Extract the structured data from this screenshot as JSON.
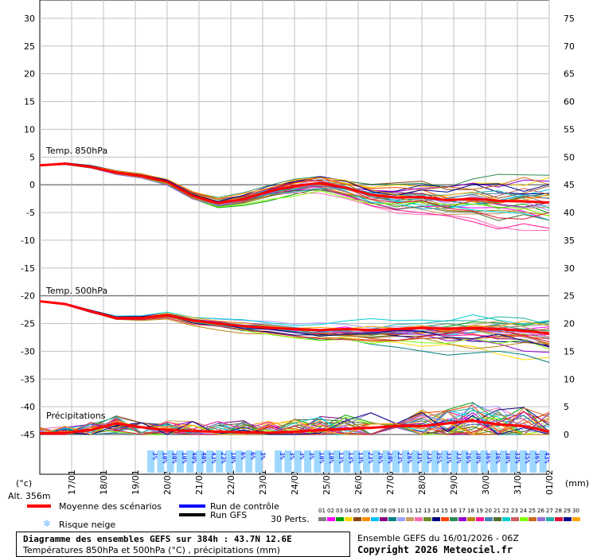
{
  "chart_data": {
    "type": "line",
    "title": "Diagramme des ensembles GEFS sur 384h : 43.7N 12.6E",
    "subtitle": "Températures 850hPa et 500hPa (°C) , précipitations (mm)",
    "run": "Ensemble GEFS du 16/01/2026 - 06Z",
    "copyright": "Copyright 2026 Meteociel.fr",
    "altitude": "Alt. 356m",
    "left_unit": "(°c)",
    "right_unit": "(mm)",
    "x_dates": [
      "17/01",
      "18/01",
      "19/01",
      "20/01",
      "21/01",
      "22/01",
      "23/01",
      "24/01",
      "25/01",
      "26/01",
      "27/01",
      "28/01",
      "29/01",
      "30/01",
      "31/01",
      "01/02"
    ],
    "left_ticks": [
      30,
      25,
      20,
      15,
      10,
      5,
      0,
      -5,
      -10,
      -15,
      -20,
      -25,
      -30,
      -35,
      -40,
      -45
    ],
    "right_ticks": [
      75,
      70,
      65,
      60,
      55,
      50,
      45,
      40,
      35,
      30,
      25,
      20,
      15,
      10,
      5,
      0
    ],
    "panel_labels": {
      "t850": "Temp. 850hPa",
      "t500": "Temp. 500hPa",
      "precip": "Précipitations"
    },
    "legend": {
      "mean": "Moyenne des scénarios",
      "control": "Run de contrôle",
      "gfs": "Run GFS",
      "snow": "Risque neige",
      "perts": "30 Perts."
    },
    "t850_mean": [
      3.5,
      3.8,
      3.2,
      2.2,
      1.6,
      0.5,
      -2.0,
      -3.3,
      -2.6,
      -1.2,
      -0.2,
      0.3,
      -0.5,
      -1.8,
      -2.3,
      -2.2,
      -2.8,
      -2.5,
      -2.9,
      -3.0,
      -3.2
    ],
    "t500_mean": [
      -21.0,
      -21.5,
      -22.8,
      -24.0,
      -24.0,
      -23.5,
      -24.5,
      -25.0,
      -25.5,
      -25.8,
      -26.0,
      -26.2,
      -26.0,
      -26.2,
      -26.0,
      -25.8,
      -26.0,
      -25.8,
      -26.0,
      -26.3,
      -26.8
    ],
    "precip_mean": [
      0.2,
      0.3,
      0.8,
      2.0,
      1.3,
      0.8,
      0.6,
      0.5,
      0.4,
      0.3,
      0.5,
      0.8,
      1.0,
      1.2,
      1.5,
      1.5,
      2.0,
      2.5,
      1.8,
      1.5,
      0.5
    ],
    "snow_risk": [
      "3%",
      "10%",
      "30%",
      "10%",
      "40%",
      "40%",
      "43%",
      "23%",
      "10%",
      "6%",
      "6%",
      "3%",
      "",
      "3%",
      "3%",
      "3%",
      "3%",
      "10%",
      "10%",
      "13%",
      "13%",
      "13%",
      "23%",
      "26%",
      "20%",
      "23%",
      "26%",
      "33%",
      "33%",
      "35%",
      "33%",
      "33%",
      "26%",
      "30%",
      "36%",
      "36%",
      "30%",
      "33%",
      "35%",
      "36%",
      "43%"
    ],
    "member_colors": [
      "#808080",
      "#ff00ff",
      "#00a000",
      "#ffd700",
      "#8b4513",
      "#ff8c00",
      "#00bfff",
      "#800080",
      "#008080",
      "#a0a0ff",
      "#c8a060",
      "#ff69b4",
      "#6b8e23",
      "#000080",
      "#ff4500",
      "#2e8b57",
      "#9400d3",
      "#b8860b",
      "#ff1493",
      "#4682b4",
      "#556b2f",
      "#00ced1",
      "#cd5c5c",
      "#7fff00",
      "#d2691e",
      "#9370db",
      "#20b2aa",
      "#dc143c",
      "#00008b",
      "#ffa500"
    ],
    "colors": {
      "mean": "#ff0000",
      "control": "#0000ff",
      "gfs": "#000000",
      "snow": "#9fd8ff"
    }
  }
}
